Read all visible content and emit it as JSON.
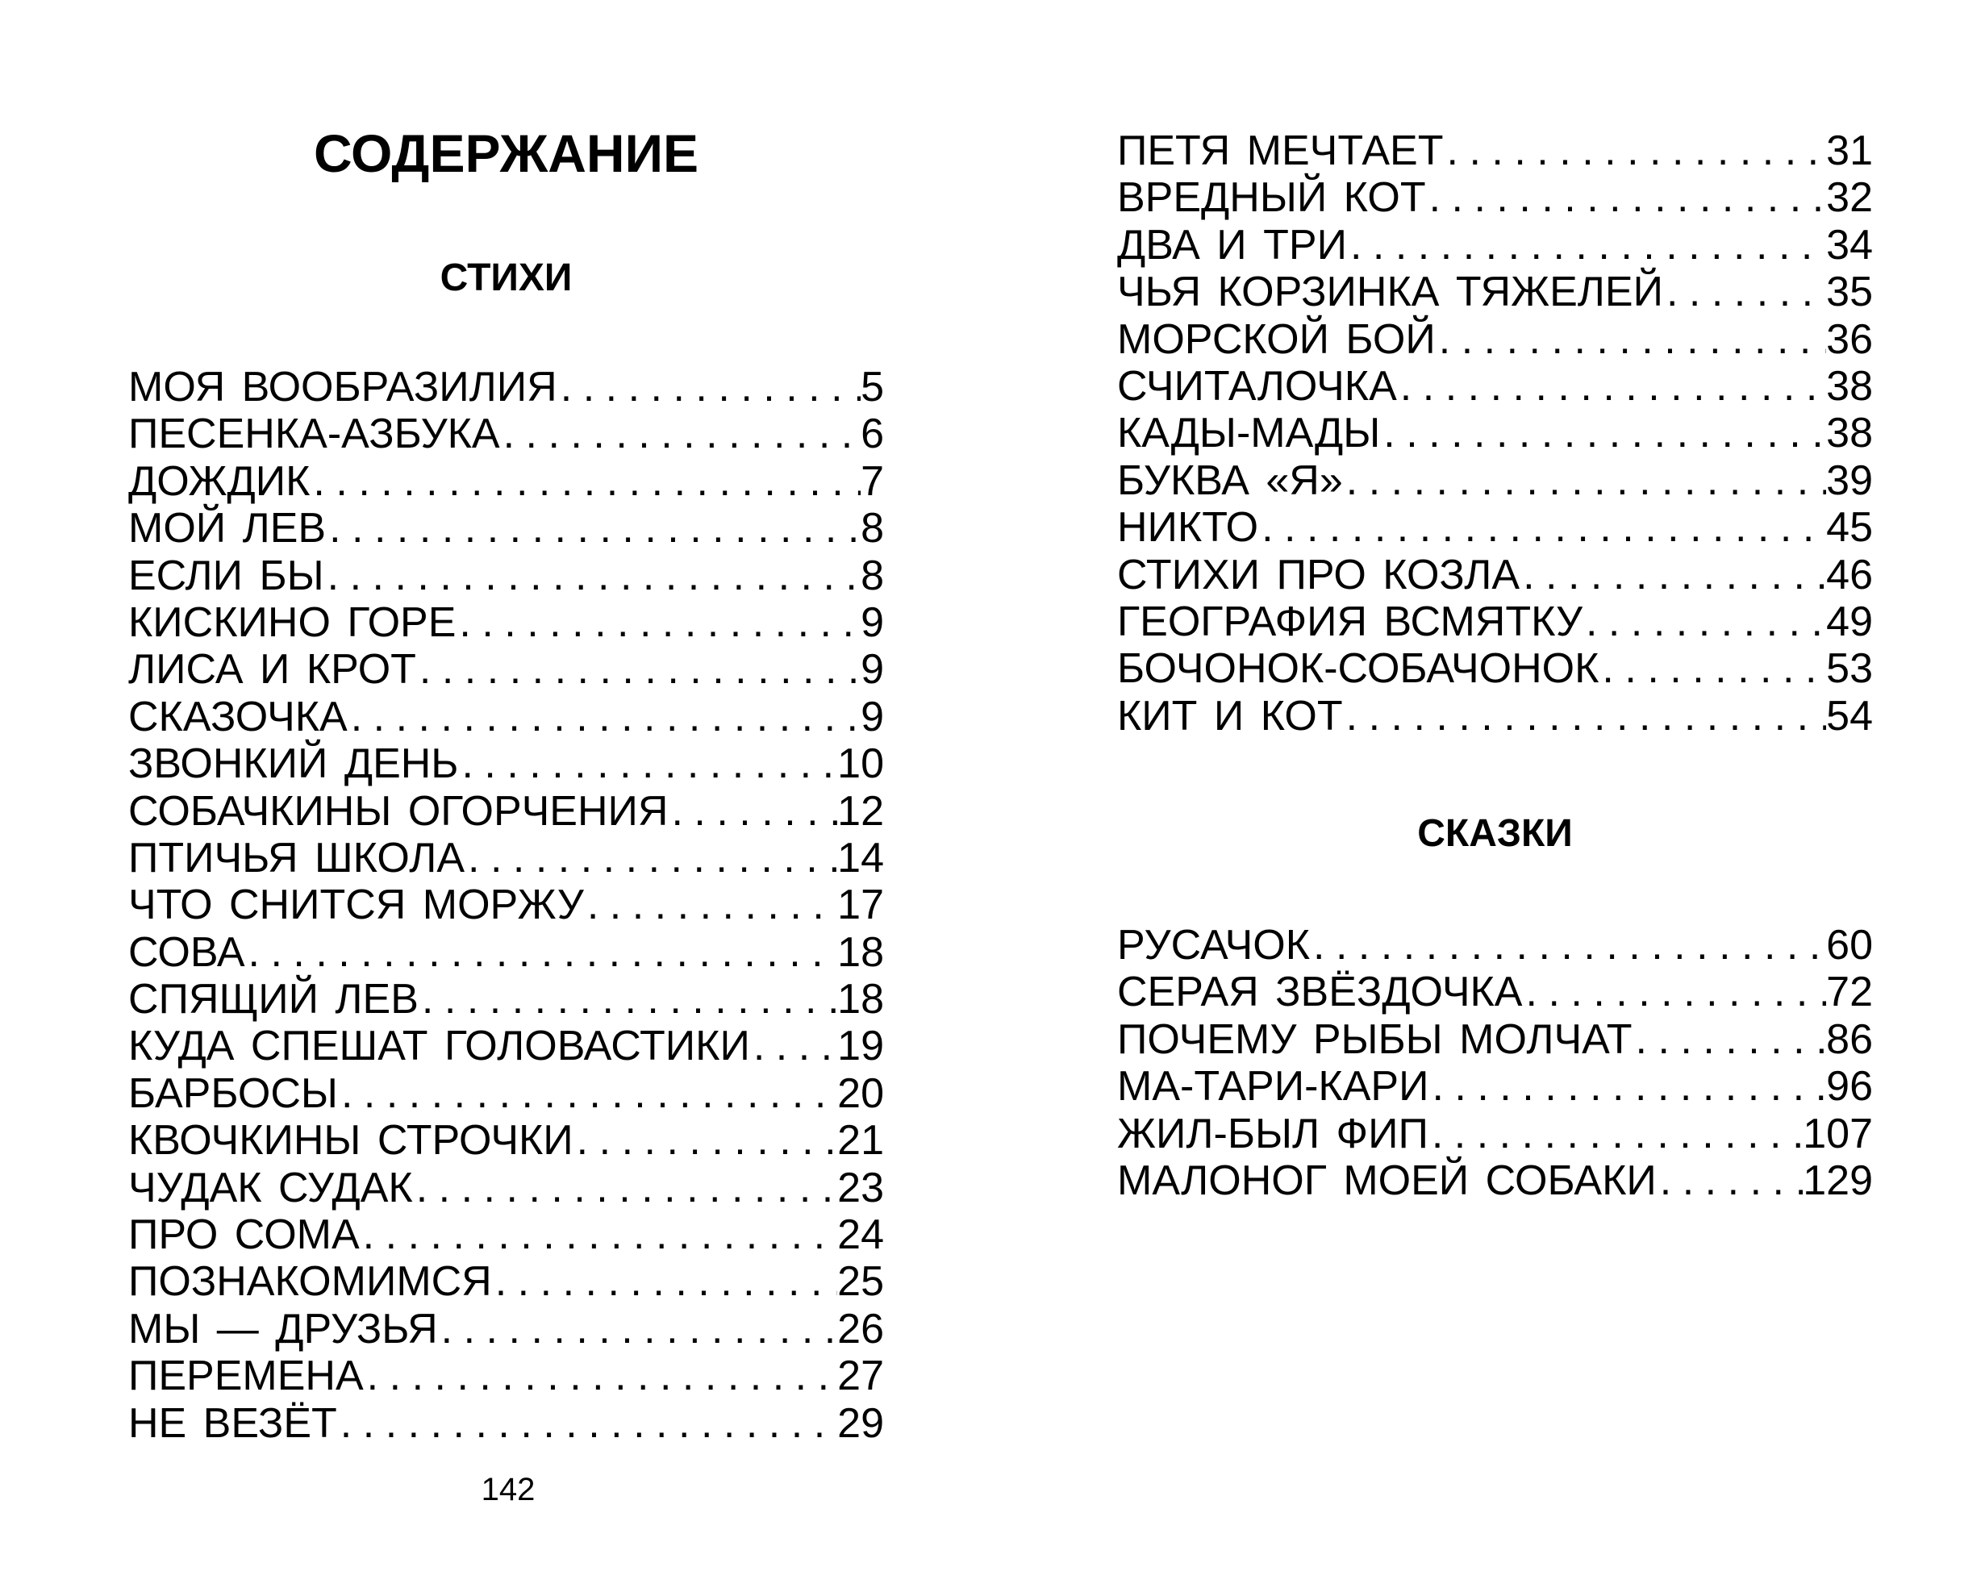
{
  "title": "СОДЕРЖАНИЕ",
  "sections": [
    {
      "heading": "СТИХИ",
      "items": [
        {
          "t": "МОЯ ВООБРАЗИЛИЯ",
          "p": "5"
        },
        {
          "t": "ПЕСЕНКА-АЗБУКА ",
          "p": "6"
        },
        {
          "t": "ДОЖДИК ",
          "p": "7"
        },
        {
          "t": "МОЙ ЛЕВ",
          "p": "8"
        },
        {
          "t": "ЕСЛИ БЫ",
          "p": "8"
        },
        {
          "t": "КИСКИНО ГОРЕ ",
          "p": "9"
        },
        {
          "t": "ЛИСА И КРОТ",
          "p": "9"
        },
        {
          "t": "СКАЗОЧКА",
          "p": "9"
        },
        {
          "t": "ЗВОНКИЙ ДЕНЬ",
          "p": "10"
        },
        {
          "t": "СОБАЧКИНЫ ОГОРЧЕНИЯ ",
          "p": "12"
        },
        {
          "t": "ПТИЧЬЯ ШКОЛА",
          "p": "14"
        },
        {
          "t": "ЧТО СНИТСЯ МОРЖУ",
          "p": "17"
        },
        {
          "t": "СОВА ",
          "p": "18"
        },
        {
          "t": "СПЯЩИЙ ЛЕВ",
          "p": "18"
        },
        {
          "t": "КУДА СПЕШАТ ГОЛОВАСТИКИ",
          "p": "19"
        },
        {
          "t": "БАРБОСЫ",
          "p": "20"
        },
        {
          "t": "КВОЧКИНЫ СТРОЧКИ ",
          "p": "21"
        },
        {
          "t": "ЧУДАК СУДАК",
          "p": "23"
        },
        {
          "t": "ПРО СОМА ",
          "p": "24"
        },
        {
          "t": "ПОЗНАКОМИМСЯ",
          "p": "25"
        },
        {
          "t": "МЫ — ДРУЗЬЯ",
          "p": "26"
        },
        {
          "t": "ПЕРЕМЕНА",
          "p": "27"
        },
        {
          "t": "НЕ ВЕЗЁТ ",
          "p": "29"
        },
        {
          "t": "ПЕТЯ МЕЧТАЕТ",
          "p": "31"
        },
        {
          "t": "ВРЕДНЫЙ КОТ ",
          "p": "32"
        },
        {
          "t": "ДВА И ТРИ ",
          "p": "34"
        },
        {
          "t": "ЧЬЯ КОРЗИНКА ТЯЖЕЛЕЙ",
          "p": "35"
        },
        {
          "t": "МОРСКОЙ БОЙ ",
          "p": "36"
        },
        {
          "t": "СЧИТАЛОЧКА ",
          "p": "38"
        },
        {
          "t": "КАДЫ-МАДЫ",
          "p": "38"
        },
        {
          "t": "БУКВА «Я»",
          "p": "39"
        },
        {
          "t": "НИКТО ",
          "p": "45"
        },
        {
          "t": "СТИХИ ПРО КОЗЛА",
          "p": "46"
        },
        {
          "t": "ГЕОГРАФИЯ ВСМЯТКУ ",
          "p": "49"
        },
        {
          "t": "БОЧОНОК-СОБАЧОНОК",
          "p": "53"
        },
        {
          "t": "КИТ И КОТ ",
          "p": "54"
        }
      ]
    },
    {
      "heading": "СКАЗКИ",
      "items": [
        {
          "t": "РУСАЧОК ",
          "p": "60"
        },
        {
          "t": "СЕРАЯ ЗВЁЗДОЧКА",
          "p": "72"
        },
        {
          "t": "ПОЧЕМУ РЫБЫ МОЛЧАТ ",
          "p": "86"
        },
        {
          "t": "МА-ТАРИ-КАРИ ",
          "p": "96"
        },
        {
          "t": "ЖИЛ-БЫЛ ФИП ",
          "p": "107"
        },
        {
          "t": "МАЛОНОГ МОЕЙ СОБАКИ",
          "p": "129"
        }
      ]
    }
  ],
  "page_number": "142"
}
